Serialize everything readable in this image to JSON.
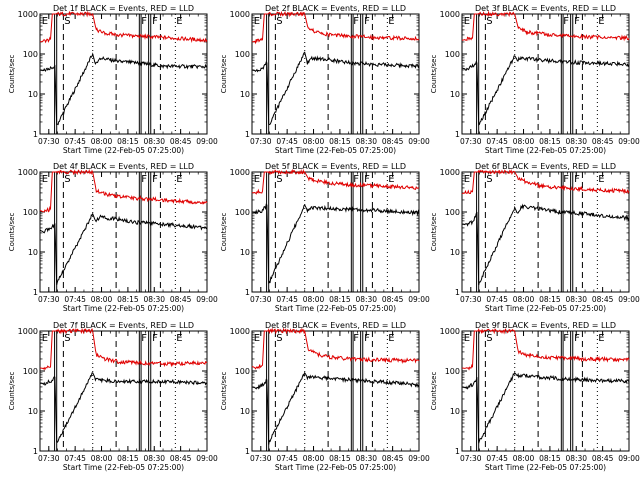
{
  "figure": {
    "panels": [
      {
        "title": "Det 1f BLACK = Events, RED = LLD"
      },
      {
        "title": "Det 2f BLACK = Events, RED = LLD"
      },
      {
        "title": "Det 3f BLACK = Events, RED = LLD"
      },
      {
        "title": "Det 4f BLACK = Events, RED = LLD"
      },
      {
        "title": "Det 5f BLACK = Events, RED = LLD"
      },
      {
        "title": "Det 6f BLACK = Events, RED = LLD"
      },
      {
        "title": "Det 7f BLACK = Events, RED = LLD"
      },
      {
        "title": "Det 8f BLACK = Events, RED = LLD"
      },
      {
        "title": "Det 9f BLACK = Events, RED = LLD"
      }
    ]
  },
  "chart_data": [
    {
      "type": "line",
      "title": "Det 1f BLACK = Events, RED = LLD",
      "xlabel": "Start Time (22-Feb-05 07:25:00)",
      "ylabel": "Counts/sec",
      "yscale": "log",
      "ylim": [
        1,
        1000
      ],
      "xlim_minutes": [
        0,
        95
      ],
      "x_tick_labels": [
        "07:30",
        "07:45",
        "08:00",
        "08:15",
        "08:30",
        "08:45",
        "09:00"
      ],
      "y_tick_labels": [
        "1",
        "10",
        "100",
        "1000"
      ],
      "region_labels": [
        "E",
        "S",
        "F",
        "F",
        "E"
      ],
      "series": [
        {
          "name": "Events",
          "color": "#000000",
          "x": [
            0,
            2,
            6,
            8.5,
            9.5,
            30,
            31.5,
            34,
            45,
            55,
            70,
            95
          ],
          "values": [
            40,
            38,
            45,
            50,
            1.6,
            100,
            55,
            80,
            65,
            60,
            50,
            48
          ]
        },
        {
          "name": "LLD",
          "color": "#e00000",
          "x": [
            0,
            2,
            6,
            7,
            8,
            9.5,
            30,
            32,
            37,
            45,
            55,
            70,
            95
          ],
          "values": [
            200,
            210,
            230,
            1000,
            1000,
            1000,
            1000,
            400,
            330,
            300,
            280,
            260,
            220
          ]
        }
      ]
    },
    {
      "type": "line",
      "title": "Det 2f BLACK = Events, RED = LLD",
      "xlabel": "Start Time (22-Feb-05 07:25:00)",
      "ylabel": "Counts/sec",
      "yscale": "log",
      "ylim": [
        1,
        1000
      ],
      "xlim_minutes": [
        0,
        95
      ],
      "x_tick_labels": [
        "07:30",
        "07:45",
        "08:00",
        "08:15",
        "08:30",
        "08:45",
        "09:00"
      ],
      "y_tick_labels": [
        "1",
        "10",
        "100",
        "1000"
      ],
      "region_labels": [
        "E",
        "S",
        "F",
        "F",
        "E"
      ],
      "series": [
        {
          "name": "Events",
          "color": "#000000",
          "x": [
            0,
            2,
            6,
            8.5,
            9.5,
            30,
            31.5,
            34,
            45,
            55,
            70,
            95
          ],
          "values": [
            40,
            38,
            45,
            60,
            1.6,
            110,
            60,
            80,
            70,
            60,
            55,
            50
          ]
        },
        {
          "name": "LLD",
          "color": "#e00000",
          "x": [
            0,
            2,
            6,
            7,
            8,
            9.5,
            30,
            32,
            37,
            45,
            55,
            70,
            95
          ],
          "values": [
            200,
            210,
            230,
            1000,
            1000,
            1000,
            1000,
            420,
            350,
            300,
            280,
            260,
            240
          ]
        }
      ]
    },
    {
      "type": "line",
      "title": "Det 3f BLACK = Events, RED = LLD",
      "xlabel": "Start Time (22-Feb-05 07:25:00)",
      "ylabel": "Counts/sec",
      "yscale": "log",
      "ylim": [
        1,
        1000
      ],
      "xlim_minutes": [
        0,
        95
      ],
      "x_tick_labels": [
        "07:30",
        "07:45",
        "08:00",
        "08:15",
        "08:30",
        "08:45",
        "09:00"
      ],
      "y_tick_labels": [
        "1",
        "10",
        "100",
        "1000"
      ],
      "region_labels": [
        "E",
        "S",
        "F",
        "F",
        "E"
      ],
      "series": [
        {
          "name": "Events",
          "color": "#000000",
          "x": [
            0,
            2,
            6,
            8.5,
            9.5,
            30,
            31.5,
            34,
            45,
            55,
            70,
            95
          ],
          "values": [
            45,
            42,
            50,
            60,
            1.6,
            90,
            70,
            80,
            70,
            65,
            60,
            55
          ]
        },
        {
          "name": "LLD",
          "color": "#e00000",
          "x": [
            0,
            2,
            6,
            7,
            8,
            9.5,
            30,
            32,
            37,
            45,
            55,
            70,
            95
          ],
          "values": [
            220,
            230,
            250,
            1000,
            1000,
            1000,
            1000,
            450,
            350,
            320,
            290,
            270,
            250
          ]
        }
      ]
    },
    {
      "type": "line",
      "title": "Det 4f BLACK = Events, RED = LLD",
      "xlabel": "Start Time (22-Feb-05 07:25:00)",
      "ylabel": "Counts/sec",
      "yscale": "log",
      "ylim": [
        1,
        1000
      ],
      "xlim_minutes": [
        0,
        95
      ],
      "x_tick_labels": [
        "07:30",
        "07:45",
        "08:00",
        "08:15",
        "08:30",
        "08:45",
        "09:00"
      ],
      "y_tick_labels": [
        "1",
        "10",
        "100",
        "1000"
      ],
      "region_labels": [
        "E",
        "S",
        "F",
        "F",
        "E"
      ],
      "series": [
        {
          "name": "Events",
          "color": "#000000",
          "x": [
            0,
            2,
            6,
            8.5,
            9.5,
            30,
            31.5,
            34,
            45,
            55,
            70,
            95
          ],
          "values": [
            35,
            32,
            40,
            50,
            1.6,
            90,
            60,
            75,
            65,
            55,
            50,
            40
          ]
        },
        {
          "name": "LLD",
          "color": "#e00000",
          "x": [
            0,
            2,
            6,
            7,
            8,
            9.5,
            30,
            32,
            37,
            45,
            55,
            70,
            95
          ],
          "values": [
            110,
            100,
            120,
            1000,
            1000,
            1000,
            1000,
            350,
            280,
            240,
            220,
            200,
            170
          ]
        }
      ]
    },
    {
      "type": "line",
      "title": "Det 5f BLACK = Events, RED = LLD",
      "xlabel": "Start Time (22-Feb-05 07:25:00)",
      "ylabel": "Counts/sec",
      "yscale": "log",
      "ylim": [
        1,
        1000
      ],
      "xlim_minutes": [
        0,
        95
      ],
      "x_tick_labels": [
        "07:30",
        "07:45",
        "08:00",
        "08:15",
        "08:30",
        "08:45",
        "09:00"
      ],
      "y_tick_labels": [
        "1",
        "10",
        "100",
        "1000"
      ],
      "region_labels": [
        "E",
        "S",
        "F",
        "F",
        "E"
      ],
      "series": [
        {
          "name": "Events",
          "color": "#000000",
          "x": [
            0,
            2,
            6,
            8.5,
            9.5,
            30,
            31.5,
            34,
            45,
            55,
            70,
            95
          ],
          "values": [
            100,
            95,
            110,
            150,
            1.6,
            150,
            110,
            130,
            120,
            115,
            110,
            95
          ]
        },
        {
          "name": "LLD",
          "color": "#e00000",
          "x": [
            0,
            2,
            6,
            7,
            8,
            9.5,
            30,
            32,
            37,
            45,
            55,
            70,
            95
          ],
          "values": [
            300,
            310,
            330,
            1000,
            1000,
            1000,
            1000,
            700,
            600,
            520,
            480,
            450,
            400
          ]
        }
      ]
    },
    {
      "type": "line",
      "title": "Det 6f BLACK = Events, RED = LLD",
      "xlabel": "Start Time (22-Feb-05 07:25:00)",
      "ylabel": "Counts/sec",
      "yscale": "log",
      "ylim": [
        1,
        1000
      ],
      "xlim_minutes": [
        0,
        95
      ],
      "x_tick_labels": [
        "07:30",
        "07:45",
        "08:00",
        "08:15",
        "08:30",
        "08:45",
        "09:00"
      ],
      "y_tick_labels": [
        "1",
        "10",
        "100",
        "1000"
      ],
      "region_labels": [
        "E",
        "S",
        "F",
        "F",
        "E"
      ],
      "series": [
        {
          "name": "Events",
          "color": "#000000",
          "x": [
            0,
            2,
            6,
            8.5,
            9.5,
            30,
            31.5,
            34,
            45,
            55,
            70,
            95
          ],
          "values": [
            50,
            48,
            55,
            100,
            1.6,
            130,
            90,
            140,
            120,
            100,
            90,
            70
          ]
        },
        {
          "name": "LLD",
          "color": "#e00000",
          "x": [
            0,
            2,
            6,
            7,
            8,
            9.5,
            30,
            32,
            37,
            45,
            55,
            70,
            95
          ],
          "values": [
            290,
            300,
            320,
            1000,
            1000,
            1000,
            1000,
            700,
            550,
            450,
            400,
            370,
            330
          ]
        }
      ]
    },
    {
      "type": "line",
      "title": "Det 7f BLACK = Events, RED = LLD",
      "xlabel": "Start Time (22-Feb-05 07:25:00)",
      "ylabel": "Counts/sec",
      "yscale": "log",
      "ylim": [
        1,
        1000
      ],
      "xlim_minutes": [
        0,
        95
      ],
      "x_tick_labels": [
        "07:30",
        "07:45",
        "08:00",
        "08:15",
        "08:30",
        "08:45",
        "09:00"
      ],
      "y_tick_labels": [
        "1",
        "10",
        "100",
        "1000"
      ],
      "region_labels": [
        "E",
        "S",
        "F",
        "F",
        "E"
      ],
      "series": [
        {
          "name": "Events",
          "color": "#000000",
          "x": [
            0,
            2,
            6,
            8.5,
            9.5,
            30,
            31.5,
            34,
            45,
            55,
            70,
            95
          ],
          "values": [
            50,
            48,
            55,
            70,
            1.6,
            90,
            65,
            60,
            55,
            55,
            55,
            50
          ]
        },
        {
          "name": "LLD",
          "color": "#e00000",
          "x": [
            0,
            2,
            6,
            7,
            8,
            9.5,
            30,
            32,
            37,
            45,
            55,
            70,
            95
          ],
          "values": [
            120,
            115,
            125,
            1000,
            1000,
            1000,
            1000,
            250,
            200,
            170,
            160,
            150,
            160
          ]
        }
      ]
    },
    {
      "type": "line",
      "title": "Det 8f BLACK = Events, RED = LLD",
      "xlabel": "Start Time (22-Feb-05 07:25:00)",
      "ylabel": "Counts/sec",
      "yscale": "log",
      "ylim": [
        1,
        1000
      ],
      "xlim_minutes": [
        0,
        95
      ],
      "x_tick_labels": [
        "07:30",
        "07:45",
        "08:00",
        "08:15",
        "08:30",
        "08:45",
        "09:00"
      ],
      "y_tick_labels": [
        "1",
        "10",
        "100",
        "1000"
      ],
      "region_labels": [
        "E",
        "S",
        "F",
        "F",
        "E"
      ],
      "series": [
        {
          "name": "Events",
          "color": "#000000",
          "x": [
            0,
            2,
            6,
            8.5,
            9.5,
            30,
            31.5,
            34,
            45,
            55,
            70,
            95
          ],
          "values": [
            40,
            38,
            45,
            60,
            1.6,
            90,
            70,
            70,
            65,
            60,
            55,
            45
          ]
        },
        {
          "name": "LLD",
          "color": "#e00000",
          "x": [
            0,
            2,
            6,
            7,
            8,
            9.5,
            30,
            32,
            37,
            45,
            55,
            70,
            95
          ],
          "values": [
            130,
            120,
            140,
            1000,
            1000,
            1000,
            1000,
            350,
            260,
            220,
            200,
            190,
            180
          ]
        }
      ]
    },
    {
      "type": "line",
      "title": "Det 9f BLACK = Events, RED = LLD",
      "xlabel": "Start Time (22-Feb-05 07:25:00)",
      "ylabel": "Counts/sec",
      "yscale": "log",
      "ylim": [
        1,
        1000
      ],
      "xlim_minutes": [
        0,
        95
      ],
      "x_tick_labels": [
        "07:30",
        "07:45",
        "08:00",
        "08:15",
        "08:30",
        "08:45",
        "09:00"
      ],
      "y_tick_labels": [
        "1",
        "10",
        "100",
        "1000"
      ],
      "region_labels": [
        "E",
        "S",
        "F",
        "F",
        "E"
      ],
      "series": [
        {
          "name": "Events",
          "color": "#000000",
          "x": [
            0,
            2,
            6,
            8.5,
            9.5,
            30,
            31.5,
            34,
            45,
            55,
            70,
            95
          ],
          "values": [
            40,
            38,
            45,
            70,
            1.6,
            90,
            75,
            80,
            70,
            65,
            60,
            55
          ]
        },
        {
          "name": "LLD",
          "color": "#e00000",
          "x": [
            0,
            2,
            6,
            7,
            8,
            9.5,
            30,
            32,
            37,
            45,
            55,
            70,
            95
          ],
          "values": [
            120,
            115,
            130,
            1000,
            1000,
            1000,
            1000,
            300,
            250,
            220,
            210,
            200,
            190
          ]
        }
      ]
    }
  ]
}
